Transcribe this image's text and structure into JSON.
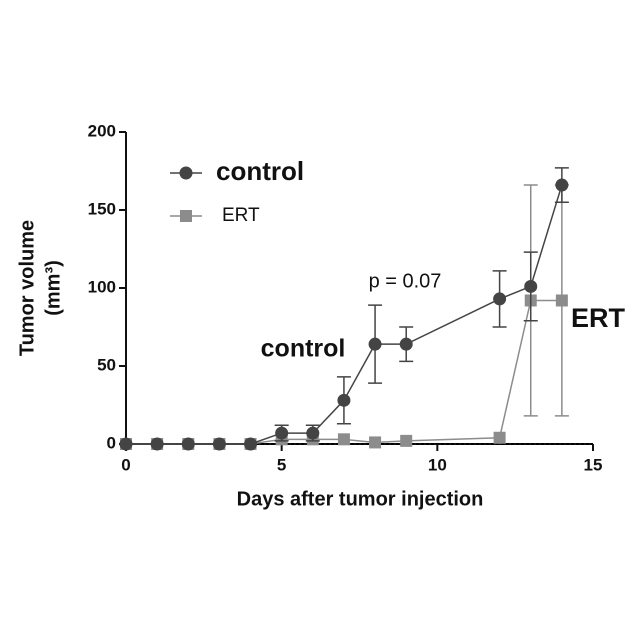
{
  "chart_data": {
    "type": "line",
    "xlabel": "Days after tumor injection",
    "ylabel_lines": [
      "Tumor volume",
      "(mm³)"
    ],
    "x": [
      0,
      1,
      2,
      3,
      4,
      5,
      6,
      7,
      8,
      9,
      12,
      13,
      14
    ],
    "series": [
      {
        "name": "control",
        "color": "#444444",
        "marker": "circle",
        "values": [
          0,
          0,
          0,
          0,
          0,
          7,
          7,
          28,
          64,
          64,
          93,
          101,
          166
        ],
        "errors": [
          null,
          null,
          null,
          null,
          null,
          5,
          5,
          15,
          25,
          11,
          18,
          22,
          11
        ]
      },
      {
        "name": "ERT",
        "color": "#8c8c8c",
        "marker": "square",
        "values": [
          0,
          0,
          0,
          0,
          0,
          3,
          3,
          3,
          1,
          2,
          4,
          92,
          92
        ],
        "errors": [
          null,
          null,
          null,
          null,
          null,
          null,
          null,
          null,
          null,
          null,
          null,
          74,
          74
        ]
      }
    ],
    "annotations": [
      "p = 0.07",
      "control",
      "ERT"
    ],
    "xlim": [
      0,
      15
    ],
    "xticks": [
      0,
      5,
      10,
      15
    ],
    "ylim": [
      0,
      200
    ],
    "yticks": [
      0,
      50,
      100,
      150,
      200
    ]
  }
}
